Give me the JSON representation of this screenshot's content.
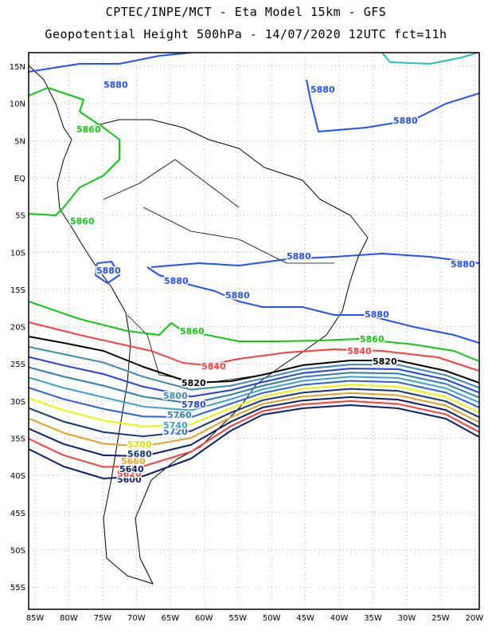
{
  "header": {
    "line1": "CPTEC/INPE/MCT -  Eta Model 15km - GFS",
    "line2": "Geopotential Height 500hPa - 14/07/2020 12UTC fct=11h"
  },
  "axes": {
    "lat_labels": [
      "15N",
      "10N",
      "5N",
      "EQ",
      "5S",
      "10S",
      "15S",
      "20S",
      "25S",
      "30S",
      "35S",
      "40S",
      "45S",
      "50S",
      "55S"
    ],
    "lat_values": [
      15,
      10,
      5,
      0,
      -5,
      -10,
      -15,
      -20,
      -25,
      -30,
      -35,
      -40,
      -45,
      -50,
      -55
    ],
    "lon_labels": [
      "85W",
      "80W",
      "75W",
      "70W",
      "65W",
      "60W",
      "55W",
      "50W",
      "45W",
      "40W",
      "35W",
      "30W",
      "25W",
      "20W"
    ],
    "lon_values": [
      -85,
      -80,
      -75,
      -70,
      -65,
      -60,
      -55,
      -50,
      -45,
      -40,
      -35,
      -30,
      -25,
      -20
    ]
  },
  "contours": [
    {
      "level": "5600",
      "color": "#0a1f6e"
    },
    {
      "level": "5620",
      "color": "#ff3b3b"
    },
    {
      "level": "5640",
      "color": "#0a1f6e"
    },
    {
      "level": "5660",
      "color": "#e8a020"
    },
    {
      "level": "5680",
      "color": "#14357a"
    },
    {
      "level": "5700",
      "color": "#f2f200"
    },
    {
      "level": "5720",
      "color": "#2a5fe0"
    },
    {
      "level": "5740",
      "color": "#3aa0d0"
    },
    {
      "level": "5760",
      "color": "#2c7fb0"
    },
    {
      "level": "5780",
      "color": "#1e3ef0"
    },
    {
      "level": "5800",
      "color": "#3a8ab8"
    },
    {
      "level": "5820",
      "color": "#000000"
    },
    {
      "level": "5840",
      "color": "#ff3b3b"
    },
    {
      "level": "5860",
      "color": "#10c810"
    },
    {
      "level": "5880",
      "color": "#2050ff"
    }
  ]
}
